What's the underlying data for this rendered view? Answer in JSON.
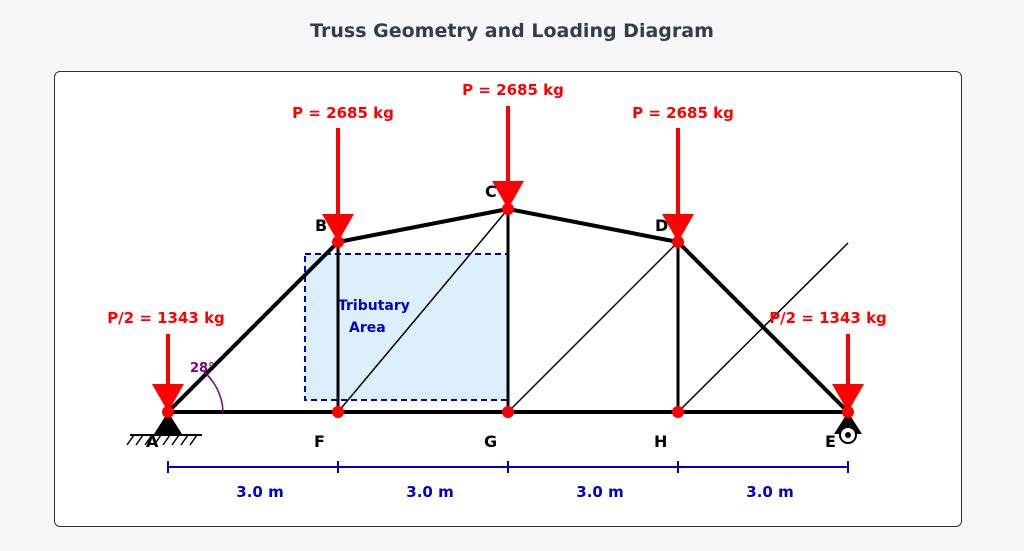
{
  "title": "Truss Geometry and Loading Diagram",
  "colors": {
    "member": "#000000",
    "load": "#ff0000",
    "node": "#ff0000",
    "dimension": "#0000cc",
    "tributary_fill": "#dceffb",
    "tributary_border": "#0000cc",
    "angle": "#800080",
    "support": "#000000"
  },
  "nodes": {
    "A": "A",
    "B": "B",
    "C": "C",
    "D": "D",
    "E": "E",
    "F": "F",
    "G": "G",
    "H": "H"
  },
  "loads": {
    "left_end": "P/2 = 1343 kg",
    "B": "P = 2685 kg",
    "C": "P = 2685 kg",
    "D": "P = 2685 kg",
    "right_end": "P/2 = 1343 kg"
  },
  "tributary_area": {
    "line1": "Tributary",
    "line2": "Area"
  },
  "angle_label": "28°",
  "dimensions": [
    "3.0 m",
    "3.0 m",
    "3.0 m",
    "3.0 m"
  ],
  "supports": {
    "A": "pin-support-icon",
    "E": "roller-support-icon"
  }
}
